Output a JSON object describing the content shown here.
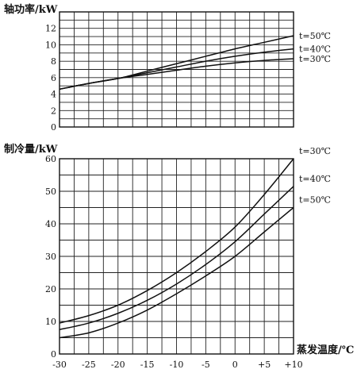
{
  "chart_data": [
    {
      "type": "line",
      "ylabel": "轴功率/kW",
      "xlabel": "",
      "xlim": [
        -30,
        10
      ],
      "ylim": [
        0,
        14
      ],
      "x_ticks": [
        -30,
        -25,
        -20,
        -15,
        -10,
        -5,
        0,
        5,
        10
      ],
      "y_ticks": [
        0,
        2,
        4,
        6,
        8,
        10,
        12
      ],
      "y_tick_labels": [
        "0",
        "2",
        "4",
        "6",
        "8",
        "10",
        "12"
      ],
      "grid": true,
      "series": [
        {
          "name": "t=50℃",
          "x": [
            -30,
            -25,
            -20,
            -15,
            -10,
            -5,
            0,
            5,
            10
          ],
          "y": [
            4.6,
            5.3,
            5.9,
            6.8,
            7.7,
            8.6,
            9.5,
            10.3,
            11.1
          ]
        },
        {
          "name": "t=40℃",
          "x": [
            -30,
            -25,
            -20,
            -15,
            -10,
            -5,
            0,
            5,
            10
          ],
          "y": [
            4.6,
            5.3,
            5.9,
            6.6,
            7.3,
            8.0,
            8.6,
            9.1,
            9.5
          ]
        },
        {
          "name": "t=30℃",
          "x": [
            -30,
            -25,
            -20,
            -15,
            -10,
            -5,
            0,
            5,
            10
          ],
          "y": [
            4.6,
            5.3,
            5.9,
            6.4,
            6.9,
            7.4,
            7.8,
            8.1,
            8.3
          ]
        }
      ]
    },
    {
      "type": "line",
      "ylabel": "制冷量/kW",
      "xlabel": "蒸发温度/℃",
      "xlim": [
        -30,
        10
      ],
      "ylim": [
        0,
        60
      ],
      "x_ticks": [
        -30,
        -25,
        -20,
        -15,
        -10,
        -5,
        0,
        5,
        10
      ],
      "x_tick_labels": [
        "-30",
        "-25",
        "-20",
        "-15",
        "-10",
        "-5",
        "0",
        "+5",
        "+10"
      ],
      "y_ticks": [
        0,
        10,
        20,
        30,
        40,
        50,
        60
      ],
      "y_tick_labels": [
        "0",
        "10",
        "20",
        "30",
        "40",
        "50",
        "60"
      ],
      "grid": true,
      "series": [
        {
          "name": "t=30℃",
          "x": [
            -30,
            -25,
            -20,
            -15,
            -10,
            -5,
            0,
            5,
            10
          ],
          "y": [
            9.5,
            11.8,
            15.0,
            19.5,
            25.0,
            31.5,
            39.0,
            49.0,
            60.0
          ]
        },
        {
          "name": "t=40℃",
          "x": [
            -30,
            -25,
            -20,
            -15,
            -10,
            -5,
            0,
            5,
            10
          ],
          "y": [
            7.5,
            9.5,
            12.5,
            16.5,
            21.5,
            27.5,
            34.5,
            43.0,
            51.5
          ]
        },
        {
          "name": "t=50℃",
          "x": [
            -30,
            -25,
            -20,
            -15,
            -10,
            -5,
            0,
            5,
            10
          ],
          "y": [
            5.0,
            6.5,
            9.5,
            13.5,
            18.5,
            24.0,
            30.0,
            37.5,
            45.0
          ]
        }
      ]
    }
  ]
}
